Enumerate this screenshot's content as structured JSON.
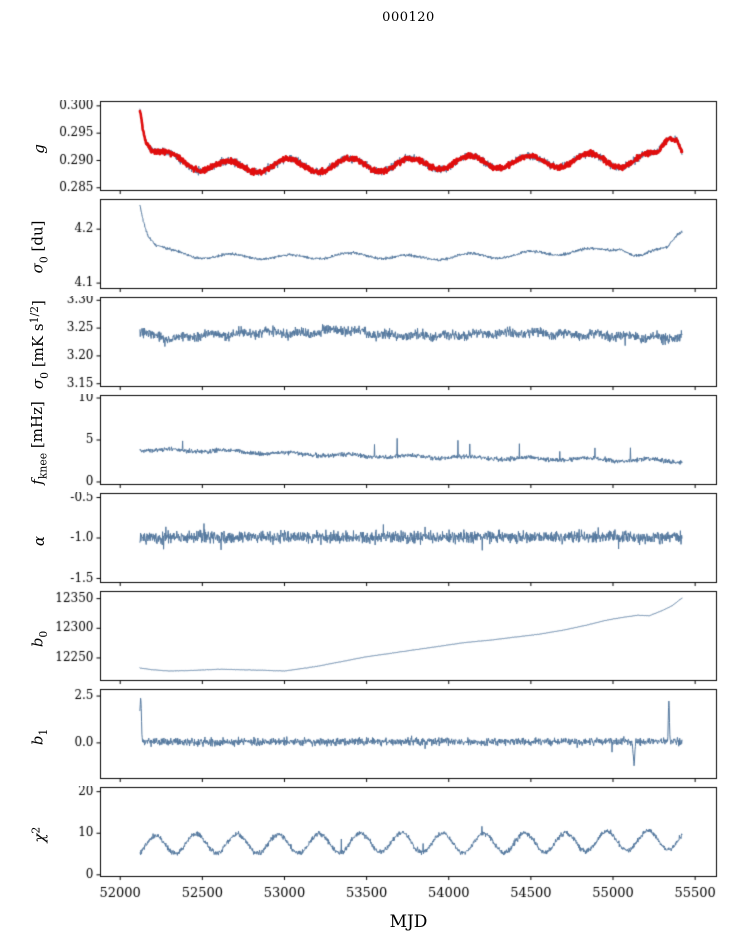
{
  "chart_data": {
    "type": "line",
    "title": "000120",
    "xlabel": "MJD",
    "x": {
      "min": 51880,
      "max": 55630,
      "data_start": 52120,
      "data_end": 55420,
      "step": 2,
      "ticks": [
        52000,
        52500,
        53000,
        53500,
        54000,
        54500,
        55000,
        55500
      ],
      "tick_labels": [
        "52000",
        "52500",
        "53000",
        "53500",
        "54000",
        "54500",
        "55000",
        "55500"
      ]
    },
    "colors": {
      "line": "#54789e",
      "overlay": "#e00d0d",
      "axis": "#000000"
    },
    "panels": [
      {
        "name": "g",
        "ylabel_segments": [
          [
            "g",
            "i"
          ]
        ],
        "ylim": [
          0.2845,
          0.3008
        ],
        "yticks": [
          0.285,
          0.29,
          0.295,
          0.3
        ],
        "ytick_labels": [
          "0.285",
          "0.290",
          "0.295",
          "0.300"
        ],
        "series": [
          {
            "name": "gain-raw",
            "color": "#54789e",
            "lw": 0.9,
            "seed": 11,
            "noise": 0.0011,
            "osc": {
              "amp": 0.0012,
              "period": 365,
              "phase": 52210
            },
            "anchors": [
              [
                52120,
                0.3005
              ],
              [
                52135,
                0.2975
              ],
              [
                52155,
                0.2945
              ],
              [
                52185,
                0.2925
              ],
              [
                52230,
                0.2912
              ],
              [
                52300,
                0.2902
              ],
              [
                52400,
                0.2896
              ],
              [
                52550,
                0.2892
              ],
              [
                52650,
                0.2887
              ],
              [
                52750,
                0.2886
              ],
              [
                52900,
                0.2893
              ],
              [
                53100,
                0.289
              ],
              [
                53300,
                0.2892
              ],
              [
                53500,
                0.2893
              ],
              [
                53700,
                0.2891
              ],
              [
                53900,
                0.2896
              ],
              [
                54100,
                0.2896
              ],
              [
                54300,
                0.2898
              ],
              [
                54500,
                0.2897
              ],
              [
                54700,
                0.29
              ],
              [
                54900,
                0.2901
              ],
              [
                55100,
                0.2899
              ],
              [
                55200,
                0.2901
              ],
              [
                55270,
                0.2906
              ],
              [
                55340,
                0.2946
              ],
              [
                55390,
                0.295
              ],
              [
                55420,
                0.2926
              ]
            ]
          },
          {
            "name": "gain-binned-overlay",
            "color": "#e00d0d",
            "lw": 2.6,
            "seed": 12,
            "noise": 0.0007,
            "osc": {
              "amp": 0.0012,
              "period": 365,
              "phase": 52210
            },
            "anchors": [
              [
                52120,
                0.3005
              ],
              [
                52135,
                0.2975
              ],
              [
                52155,
                0.2945
              ],
              [
                52185,
                0.2925
              ],
              [
                52230,
                0.2912
              ],
              [
                52300,
                0.2902
              ],
              [
                52400,
                0.2896
              ],
              [
                52550,
                0.2892
              ],
              [
                52650,
                0.2887
              ],
              [
                52750,
                0.2886
              ],
              [
                52900,
                0.2893
              ],
              [
                53100,
                0.289
              ],
              [
                53300,
                0.2892
              ],
              [
                53500,
                0.2893
              ],
              [
                53700,
                0.2891
              ],
              [
                53900,
                0.2896
              ],
              [
                54100,
                0.2896
              ],
              [
                54300,
                0.2898
              ],
              [
                54500,
                0.2897
              ],
              [
                54700,
                0.29
              ],
              [
                54900,
                0.2901
              ],
              [
                55100,
                0.2899
              ],
              [
                55200,
                0.2901
              ],
              [
                55270,
                0.2906
              ],
              [
                55340,
                0.2946
              ],
              [
                55390,
                0.295
              ],
              [
                55420,
                0.2926
              ]
            ]
          }
        ]
      },
      {
        "name": "sigma0-du",
        "ylabel_segments": [
          [
            "σ",
            "i"
          ],
          [
            "0",
            "sub"
          ],
          [
            " [du]",
            "n"
          ]
        ],
        "ylim": [
          4.09,
          4.255
        ],
        "yticks": [
          4.1,
          4.2
        ],
        "ytick_labels": [
          "4.1",
          "4.2"
        ],
        "series": [
          {
            "name": "sigma0-du",
            "color": "#54789e",
            "lw": 1.0,
            "seed": 21,
            "noise": 0.0038,
            "osc": {
              "amp": 0.005,
              "period": 365,
              "phase": 52210
            },
            "anchors": [
              [
                52120,
                4.25
              ],
              [
                52140,
                4.22
              ],
              [
                52170,
                4.19
              ],
              [
                52220,
                4.168
              ],
              [
                52300,
                4.158
              ],
              [
                52450,
                4.152
              ],
              [
                52600,
                4.148
              ],
              [
                52800,
                4.15
              ],
              [
                53000,
                4.147
              ],
              [
                53200,
                4.15
              ],
              [
                53500,
                4.152
              ],
              [
                53800,
                4.146
              ],
              [
                54100,
                4.15
              ],
              [
                54400,
                4.152
              ],
              [
                54700,
                4.158
              ],
              [
                54900,
                4.16
              ],
              [
                55050,
                4.168
              ],
              [
                55120,
                4.152
              ],
              [
                55180,
                4.148
              ],
              [
                55260,
                4.158
              ],
              [
                55330,
                4.168
              ],
              [
                55390,
                4.195
              ],
              [
                55420,
                4.2
              ]
            ]
          }
        ]
      },
      {
        "name": "sigma0-mks",
        "ylabel_segments": [
          [
            "σ",
            "i"
          ],
          [
            "0",
            "sub"
          ],
          [
            " [mK s",
            "n"
          ],
          [
            "1/2",
            "sup"
          ],
          [
            "]",
            "n"
          ]
        ],
        "ylim": [
          3.145,
          3.305
        ],
        "yticks": [
          3.15,
          3.2,
          3.25,
          3.3
        ],
        "ytick_labels": [
          "3.15",
          "3.20",
          "3.25",
          "3.30"
        ],
        "series": [
          {
            "name": "sigma0-mks",
            "color": "#54789e",
            "lw": 1.0,
            "seed": 31,
            "noise": 0.013,
            "osc": {
              "amp": 0.003,
              "period": 180,
              "phase": 52150
            },
            "spikes": {
              "p": 0.004,
              "amp": 0.03,
              "sign": "both"
            },
            "anchors": [
              [
                52120,
                3.243
              ],
              [
                52300,
                3.232
              ],
              [
                52600,
                3.238
              ],
              [
                52900,
                3.242
              ],
              [
                53100,
                3.24
              ],
              [
                53350,
                3.248
              ],
              [
                53600,
                3.238
              ],
              [
                53900,
                3.236
              ],
              [
                54200,
                3.24
              ],
              [
                54500,
                3.242
              ],
              [
                54800,
                3.238
              ],
              [
                55100,
                3.235
              ],
              [
                55300,
                3.232
              ],
              [
                55420,
                3.234
              ]
            ]
          }
        ]
      },
      {
        "name": "fknee",
        "ylabel_segments": [
          [
            "f",
            "i"
          ],
          [
            "knee",
            "sub"
          ],
          [
            " [mHz]",
            "n"
          ]
        ],
        "ylim": [
          -0.3,
          10.3
        ],
        "yticks": [
          0,
          5,
          10
        ],
        "ytick_labels": [
          "0",
          "5",
          "10"
        ],
        "series": [
          {
            "name": "fknee",
            "color": "#54789e",
            "lw": 1.0,
            "seed": 41,
            "noise": 0.4,
            "osc": {
              "amp": 0.15,
              "period": 365,
              "phase": 52210
            },
            "spikes": {
              "p": 0.006,
              "amp": 2.0,
              "sign": "pos"
            },
            "anchors": [
              [
                52120,
                3.85
              ],
              [
                52300,
                3.75
              ],
              [
                52600,
                3.7
              ],
              [
                52900,
                3.45
              ],
              [
                53200,
                3.3
              ],
              [
                53500,
                3.1
              ],
              [
                53800,
                3.0
              ],
              [
                54100,
                2.9
              ],
              [
                54400,
                2.8
              ],
              [
                54700,
                2.75
              ],
              [
                55000,
                2.65
              ],
              [
                55200,
                2.6
              ],
              [
                55420,
                2.45
              ]
            ]
          }
        ]
      },
      {
        "name": "alpha",
        "ylabel_segments": [
          [
            "α",
            "i"
          ]
        ],
        "ylim": [
          -1.55,
          -0.45
        ],
        "yticks": [
          -1.5,
          -1.0,
          -0.5
        ],
        "ytick_labels": [
          "-1.5",
          "-1.0",
          "-0.5"
        ],
        "series": [
          {
            "name": "alpha",
            "color": "#54789e",
            "lw": 1.0,
            "seed": 51,
            "noise": 0.11,
            "osc": {
              "amp": 0.0,
              "period": 365,
              "phase": 52210
            },
            "spikes": {
              "p": 0.01,
              "amp": 0.22,
              "sign": "both"
            },
            "anchors": [
              [
                52120,
                -0.99
              ],
              [
                55420,
                -0.99
              ]
            ]
          }
        ]
      },
      {
        "name": "b0",
        "ylabel_segments": [
          [
            "b",
            "i"
          ],
          [
            "0",
            "sub"
          ]
        ],
        "ylim": [
          12212,
          12362
        ],
        "yticks": [
          12250,
          12300,
          12350
        ],
        "ytick_labels": [
          "12250",
          "12300",
          "12350"
        ],
        "series": [
          {
            "name": "b0",
            "color": "#54789e",
            "lw": 1.0,
            "seed": 61,
            "noise": 0.5,
            "osc": {
              "amp": 0.0,
              "period": 365,
              "phase": 52210
            },
            "anchors": [
              [
                52120,
                12233
              ],
              [
                52200,
                12230
              ],
              [
                52300,
                12228
              ],
              [
                52450,
                12229
              ],
              [
                52600,
                12231
              ],
              [
                52750,
                12230
              ],
              [
                52900,
                12229
              ],
              [
                53000,
                12228
              ],
              [
                53080,
                12231
              ],
              [
                53200,
                12236
              ],
              [
                53350,
                12244
              ],
              [
                53500,
                12252
              ],
              [
                53650,
                12258
              ],
              [
                53800,
                12264
              ],
              [
                53950,
                12270
              ],
              [
                54100,
                12276
              ],
              [
                54250,
                12280
              ],
              [
                54400,
                12285
              ],
              [
                54550,
                12290
              ],
              [
                54700,
                12297
              ],
              [
                54850,
                12306
              ],
              [
                54950,
                12313
              ],
              [
                55050,
                12318
              ],
              [
                55150,
                12322
              ],
              [
                55220,
                12321
              ],
              [
                55300,
                12330
              ],
              [
                55360,
                12338
              ],
              [
                55420,
                12351
              ]
            ]
          }
        ]
      },
      {
        "name": "b1",
        "ylabel_segments": [
          [
            "b",
            "i"
          ],
          [
            "1",
            "sub"
          ]
        ],
        "ylim": [
          -1.9,
          2.85
        ],
        "yticks": [
          0.0,
          2.5
        ],
        "ytick_labels": [
          "0.0",
          "2.5"
        ],
        "series": [
          {
            "name": "b1",
            "color": "#54789e",
            "lw": 1.0,
            "seed": 71,
            "noise": 0.3,
            "osc": {
              "amp": 0.0,
              "period": 365,
              "phase": 52210
            },
            "spikes": {
              "p": 0.006,
              "amp": 0.5,
              "sign": "both"
            },
            "events": [
              {
                "x": 52124,
                "y": 2.3,
                "w": 5
              },
              {
                "x": 55128,
                "y": -1.35,
                "w": 4
              },
              {
                "x": 55340,
                "y": 2.3,
                "w": 3
              }
            ],
            "anchors": [
              [
                52120,
                0.05
              ],
              [
                55420,
                0.08
              ]
            ]
          }
        ]
      },
      {
        "name": "chi2",
        "ylabel_segments": [
          [
            "χ",
            "i"
          ],
          [
            "2",
            "sup"
          ]
        ],
        "ylim": [
          -0.4,
          21
        ],
        "yticks": [
          0,
          10,
          20
        ],
        "ytick_labels": [
          "0",
          "10",
          "20"
        ],
        "series": [
          {
            "name": "chi2",
            "color": "#54789e",
            "lw": 1.0,
            "seed": 81,
            "noise": 0.9,
            "osc": {
              "amp": 2.3,
              "period": 250,
              "phase": 52150
            },
            "spikes": {
              "p": 0.003,
              "amp": 3.0,
              "sign": "pos"
            },
            "anchors": [
              [
                52120,
                6.8
              ],
              [
                52400,
                7.6
              ],
              [
                53000,
                7.4
              ],
              [
                53600,
                7.8
              ],
              [
                54200,
                7.6
              ],
              [
                54800,
                7.9
              ],
              [
                55200,
                8.3
              ],
              [
                55420,
                8.6
              ]
            ]
          }
        ]
      }
    ]
  }
}
